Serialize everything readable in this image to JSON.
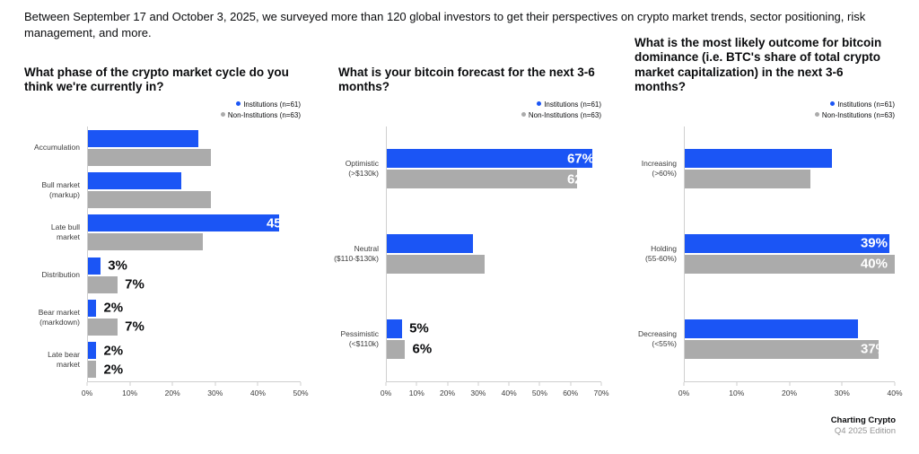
{
  "intro": "Between September 17 and October 3, 2025, we surveyed more than 120 global investors to get their perspectives on crypto market trends, sector positioning, risk management, and more.",
  "legend": {
    "institutions": "Institutions (n=61)",
    "non_institutions": "Non-Institutions (n=63)"
  },
  "colors": {
    "institutions": "#1b55f5",
    "non_institutions": "#ababab",
    "axis": "#cfcfcf"
  },
  "footer": {
    "line1": "Charting Crypto",
    "line2": "Q4 2025 Edition"
  },
  "chart_data": [
    {
      "type": "bar",
      "orientation": "horizontal",
      "title": "What phase of the crypto market cycle do you think we're currently in?",
      "categories": [
        [
          "Accumulation"
        ],
        [
          "Bull market",
          "(markup)"
        ],
        [
          "Late bull",
          "market"
        ],
        [
          "Distribution"
        ],
        [
          "Bear market",
          "(markdown)"
        ],
        [
          "Late bear",
          "market"
        ]
      ],
      "series": [
        {
          "name": "Institutions (n=61)",
          "values": [
            26,
            22,
            45,
            3,
            2,
            2
          ]
        },
        {
          "name": "Non-Institutions (n=63)",
          "values": [
            29,
            29,
            27,
            7,
            7,
            2
          ]
        }
      ],
      "value_suffix": "%",
      "xlim": [
        0,
        50
      ],
      "ticks": [
        "0%",
        "10%",
        "20%",
        "30%",
        "40%",
        "50%"
      ],
      "legend_position": "top-right",
      "grid": false
    },
    {
      "type": "bar",
      "orientation": "horizontal",
      "title": "What is your bitcoin forecast for the next 3-6 months?",
      "categories": [
        [
          "Optimistic",
          "(>$130k)"
        ],
        [
          "Neutral",
          "($110-$130k)"
        ],
        [
          "Pessimistic",
          "(<$110k)"
        ]
      ],
      "series": [
        {
          "name": "Institutions (n=61)",
          "values": [
            67,
            28,
            5
          ]
        },
        {
          "name": "Non-Institutions (n=63)",
          "values": [
            62,
            32,
            6
          ]
        }
      ],
      "value_suffix": "%",
      "xlim": [
        0,
        70
      ],
      "ticks": [
        "0%",
        "10%",
        "20%",
        "30%",
        "40%",
        "50%",
        "60%",
        "70%"
      ],
      "legend_position": "top-right",
      "grid": false
    },
    {
      "type": "bar",
      "orientation": "horizontal",
      "title": "What is the most likely outcome for bitcoin dominance (i.e. BTC's share of total crypto market capitalization) in the next 3-6 months?",
      "categories": [
        [
          "Increasing",
          "(>60%)"
        ],
        [
          "Holding",
          "(55-60%)"
        ],
        [
          "Decreasing",
          "(<55%)"
        ]
      ],
      "series": [
        {
          "name": "Institutions (n=61)",
          "values": [
            28,
            39,
            33
          ]
        },
        {
          "name": "Non-Institutions (n=63)",
          "values": [
            24,
            40,
            37
          ]
        }
      ],
      "value_suffix": "%",
      "xlim": [
        0,
        40
      ],
      "ticks": [
        "0%",
        "10%",
        "20%",
        "30%",
        "40%"
      ],
      "legend_position": "top-right",
      "grid": false
    }
  ]
}
